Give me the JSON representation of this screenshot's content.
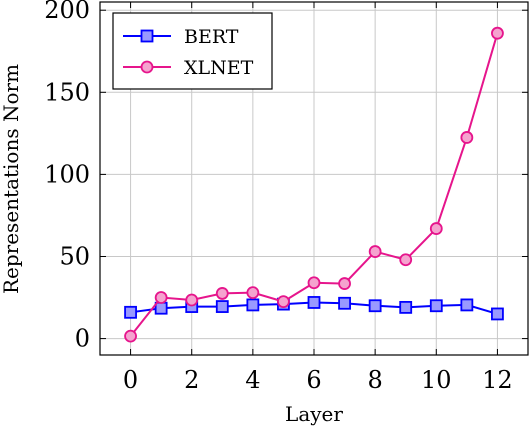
{
  "chart_data": {
    "type": "line",
    "title": "",
    "xlabel": "Layer",
    "ylabel": "Representations Norm",
    "xlim": [
      -1,
      13
    ],
    "ylim": [
      -10,
      205
    ],
    "xticks": [
      0,
      2,
      4,
      6,
      8,
      10,
      12
    ],
    "yticks": [
      0,
      50,
      100,
      150,
      200
    ],
    "grid": true,
    "legend_position": "top-left",
    "x": [
      0,
      1,
      2,
      3,
      4,
      5,
      6,
      7,
      8,
      9,
      10,
      11,
      12
    ],
    "series": [
      {
        "name": "BERT",
        "color": "#0000ff",
        "marker": "square",
        "values": [
          16,
          18.5,
          19.5,
          19.5,
          20.5,
          21,
          22,
          21.5,
          20,
          19,
          20,
          20.5,
          15
        ]
      },
      {
        "name": "XLNET",
        "color": "#e6158c",
        "marker": "circle",
        "values": [
          1.5,
          25,
          23.5,
          27.5,
          28,
          22.5,
          34,
          33.5,
          53,
          48,
          67,
          122.5,
          186
        ]
      }
    ]
  }
}
